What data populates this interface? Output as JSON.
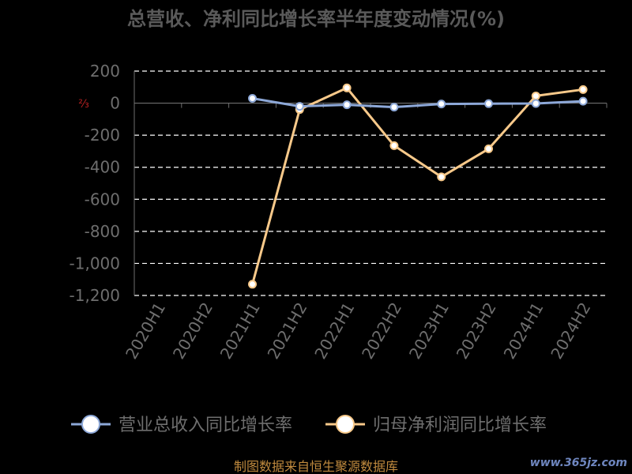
{
  "chart_data": {
    "type": "line",
    "title": "总营收、净利同比增长率半年度变动情况(%)",
    "categories": [
      "2020H1",
      "2020H2",
      "2021H1",
      "2021H2",
      "2022H1",
      "2022H2",
      "2023H1",
      "2023H2",
      "2024H1",
      "2024H2"
    ],
    "series": [
      {
        "name": "营业总收入同比增长率",
        "color": "#8da8d8",
        "values": [
          null,
          null,
          30,
          -20,
          -10,
          -25,
          -5,
          -3,
          -2,
          12
        ]
      },
      {
        "name": "归母净利润同比增长率",
        "color": "#f8c98a",
        "values": [
          null,
          null,
          -1130,
          -40,
          95,
          -265,
          -460,
          -285,
          45,
          85
        ]
      }
    ],
    "ylim": [
      -1200,
      200
    ],
    "yticks": [
      200,
      0,
      -200,
      -400,
      -600,
      -800,
      -1000,
      -1200
    ],
    "ytick_labels": [
      "200",
      "0",
      "-200",
      "-400",
      "-600",
      "-800",
      "-1,000",
      "-1,200"
    ],
    "grid": true,
    "legend": "bottom"
  },
  "marker_glyph": "⅔",
  "source_text": "制图数据来自恒生聚源数据库",
  "watermark_text": "www.365jz.com"
}
